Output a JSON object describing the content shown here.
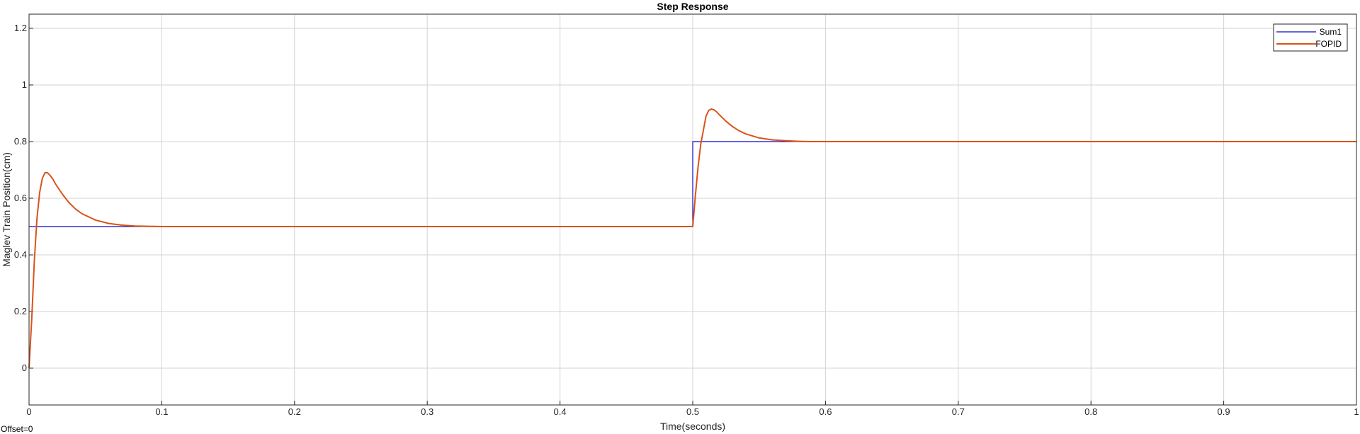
{
  "chart_data": {
    "type": "line",
    "title": "Step Response",
    "xlabel": "Time(seconds)",
    "ylabel": "Maglev Train Position(cm)",
    "xlim": [
      0,
      1
    ],
    "ylim": [
      -0.13,
      1.25
    ],
    "xticks": [
      "0",
      "0.1",
      "0.2",
      "0.3",
      "0.4",
      "0.5",
      "0.6",
      "0.7",
      "0.8",
      "0.9",
      "1"
    ],
    "yticks": [
      "0",
      "0.2",
      "0.4",
      "0.6",
      "0.8",
      "1",
      "1.2"
    ],
    "grid": true,
    "legend": "top-right",
    "series": [
      {
        "name": "Sum1",
        "color": "#0a0ac8",
        "x": [
          0,
          0.5,
          0.5,
          1.0
        ],
        "y": [
          0.5,
          0.5,
          0.8,
          0.8
        ]
      },
      {
        "name": "FOPID",
        "color": "#d95319",
        "x": [
          0,
          0.002,
          0.004,
          0.006,
          0.008,
          0.01,
          0.012,
          0.014,
          0.016,
          0.018,
          0.02,
          0.025,
          0.03,
          0.035,
          0.04,
          0.05,
          0.06,
          0.07,
          0.08,
          0.09,
          0.1,
          0.15,
          0.2,
          0.3,
          0.4,
          0.495,
          0.5,
          0.502,
          0.504,
          0.506,
          0.508,
          0.51,
          0.512,
          0.514,
          0.516,
          0.518,
          0.52,
          0.525,
          0.53,
          0.535,
          0.54,
          0.55,
          0.56,
          0.57,
          0.58,
          0.59,
          0.6,
          0.7,
          0.8,
          0.9,
          1.0
        ],
        "y": [
          0.0,
          0.17,
          0.38,
          0.53,
          0.62,
          0.67,
          0.69,
          0.69,
          0.68,
          0.667,
          0.65,
          0.615,
          0.585,
          0.562,
          0.545,
          0.523,
          0.511,
          0.505,
          0.502,
          0.501,
          0.5,
          0.5,
          0.5,
          0.5,
          0.5,
          0.5,
          0.5,
          0.61,
          0.71,
          0.79,
          0.84,
          0.89,
          0.91,
          0.915,
          0.912,
          0.905,
          0.895,
          0.872,
          0.853,
          0.838,
          0.827,
          0.813,
          0.806,
          0.803,
          0.801,
          0.8,
          0.8,
          0.8,
          0.8,
          0.8,
          0.8
        ]
      }
    ]
  },
  "footer": {
    "offset_text": "Offset=0"
  }
}
